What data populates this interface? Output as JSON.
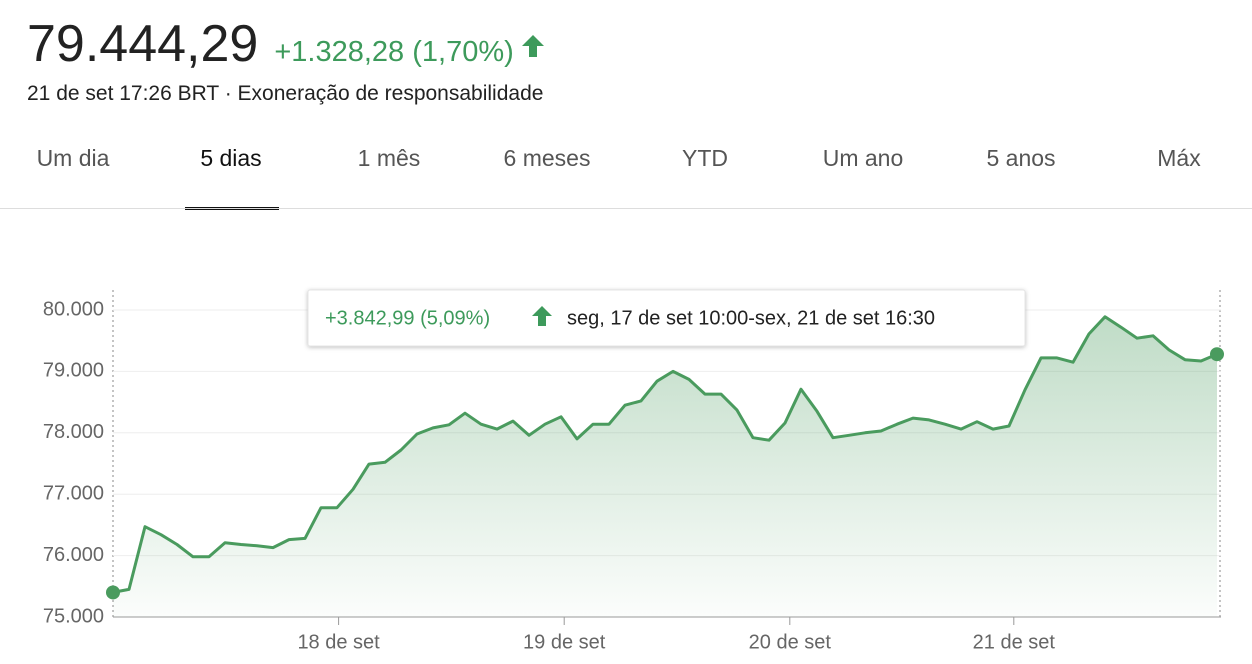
{
  "header": {
    "price": "79.444,29",
    "change": "+1.328,28 (1,70%)",
    "timestamp": "21 de set 17:26 BRT",
    "disclaimer": "Exoneração de responsabilidade"
  },
  "tabs": {
    "items": [
      "Um dia",
      "5 dias",
      "1 mês",
      "6 meses",
      "YTD",
      "Um ano",
      "5 anos",
      "Máx"
    ],
    "selected": 1
  },
  "chart_data": {
    "type": "line",
    "color": "#4a9b5e",
    "values": [
      75400,
      75450,
      76470,
      76340,
      76180,
      75980,
      75980,
      76210,
      76180,
      76160,
      76130,
      76260,
      76280,
      76780,
      76780,
      77080,
      77490,
      77520,
      77720,
      77980,
      78080,
      78130,
      78320,
      78140,
      78060,
      78190,
      77960,
      78140,
      78260,
      77900,
      78140,
      78140,
      78450,
      78520,
      78840,
      79000,
      78870,
      78630,
      78630,
      78370,
      77920,
      77880,
      78160,
      78710,
      78350,
      77920,
      77960,
      78000,
      78030,
      78140,
      78240,
      78210,
      78140,
      78060,
      78180,
      78060,
      78110,
      78700,
      79220,
      79220,
      79150,
      79610,
      79890,
      79720,
      79540,
      79580,
      79350,
      79190,
      79170,
      79280
    ],
    "xlim": [
      0,
      69.25
    ],
    "xticks": [
      {
        "value": 14.1,
        "label": "18 de set"
      },
      {
        "value": 28.2,
        "label": "19 de set"
      },
      {
        "value": 42.3,
        "label": "20 de set"
      },
      {
        "value": 56.3,
        "label": "21 de set"
      }
    ],
    "ylim": [
      75000,
      80000
    ],
    "yticks": [
      {
        "value": 75000,
        "label": "75.000"
      },
      {
        "value": 76000,
        "label": "76.000"
      },
      {
        "value": 77000,
        "label": "77.000"
      },
      {
        "value": 78000,
        "label": "78.000"
      },
      {
        "value": 79000,
        "label": "79.000"
      },
      {
        "value": 80000,
        "label": "80.000"
      }
    ],
    "grid": true,
    "tooltip": {
      "change": "+3.842,99 (5,09%)",
      "range": "seg, 17 de set 10:00-sex, 21 de set 16:30"
    }
  }
}
